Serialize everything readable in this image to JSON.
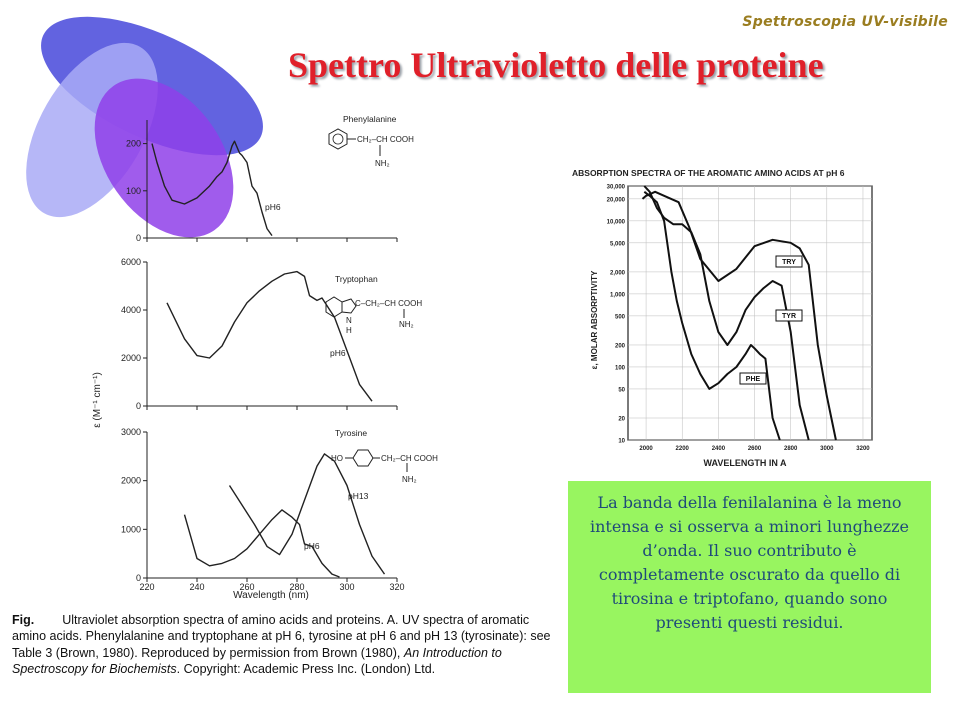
{
  "header": {
    "series_title": "Spettroscopia UV-visibile",
    "slide_title": "Spettro Ultravioletto delle proteine"
  },
  "colors": {
    "title_red": "#e0202a",
    "series_gold": "#9a7d20",
    "note_bg": "#98f560",
    "note_text": "#1f4a7a",
    "ellipse_blue": "#5556dd",
    "ellipse_light": "#a9aaf6",
    "ellipse_violet": "#8f3fe9"
  },
  "left_figure": {
    "ylabel": "ε (M⁻¹ cm⁻¹)",
    "xlabel": "Wavelength (nm)",
    "x_ticks": [
      "220",
      "240",
      "260",
      "280",
      "300",
      "320"
    ],
    "panels": [
      {
        "compound": "Phenylalanine",
        "y_ticks": [
          "0",
          "100",
          "200"
        ],
        "curve_labels": [
          "pH6"
        ],
        "structure": {
          "chain": "CH₂–CH COOH",
          "amine": "NH₂"
        }
      },
      {
        "compound": "Tryptophan",
        "y_ticks": [
          "0",
          "2000",
          "4000",
          "6000"
        ],
        "curve_labels": [
          "pH6"
        ],
        "structure": {
          "chain": "C–CH₂–CH COOH",
          "amine": "NH₂",
          "ring_n": "N",
          "ring_h": "H"
        }
      },
      {
        "compound": "Tyrosine",
        "y_ticks": [
          "0",
          "1000",
          "2000",
          "3000"
        ],
        "curve_labels": [
          "pH13",
          "pH6"
        ],
        "structure": {
          "hydroxyl": "HO",
          "chain": "CH₂–CH COOH",
          "amine": "NH₂"
        }
      }
    ]
  },
  "right_figure": {
    "title": "ABSORPTION SPECTRA OF THE AROMATIC AMINO ACIDS AT pH 6",
    "ylabel": "ε, MOLAR ABSORPTIVITY",
    "xlabel": "WAVELENGTH IN A",
    "x_ticks": [
      "2000",
      "2200",
      "2400",
      "2600",
      "2800",
      "3000",
      "3200"
    ],
    "y_ticks": [
      "10",
      "20",
      "50",
      "100",
      "200",
      "500",
      "1,000",
      "2,000",
      "5,000",
      "10,000",
      "20,000",
      "30,000"
    ],
    "series_labels": [
      "TRY",
      "TYR",
      "PHE"
    ]
  },
  "caption": {
    "lead": "Fig.",
    "line1": "Ultraviolet absorption spectra of amino acids and proteins. A. UV spectra of aromatic amino acids. Phenylalanine and tryptophane at pH 6, tyrosine at pH 6 and pH 13 (tyrosinate): see Table 3 (Brown, 1980). Reproduced by permission from Brown (1980), ",
    "book": "An Introduction to Spectroscopy for Biochemists",
    "line2": ". Copyright: Academic Press Inc. (London) Ltd."
  },
  "note": {
    "text": "La banda della fenilalanina è la meno intensa e si osserva a minori lunghezze d’onda. Il suo contributo è completamente oscurato da quello di tirosina e triptofano, quando sono presenti questi residui."
  },
  "chart_data": [
    {
      "type": "line",
      "title": "Phenylalanine",
      "xlabel": "Wavelength (nm)",
      "ylabel": "ε (M⁻¹ cm⁻¹)",
      "xlim": [
        220,
        320
      ],
      "ylim": [
        0,
        250
      ],
      "series": [
        {
          "name": "pH6",
          "x": [
            222,
            224,
            227,
            230,
            235,
            240,
            245,
            248,
            250,
            252,
            254,
            255,
            257,
            258,
            260,
            262,
            264,
            266,
            268,
            270
          ],
          "y": [
            200,
            160,
            110,
            80,
            72,
            85,
            110,
            130,
            140,
            160,
            195,
            205,
            180,
            175,
            160,
            110,
            95,
            55,
            20,
            5
          ]
        }
      ]
    },
    {
      "type": "line",
      "title": "Tryptophan",
      "xlabel": "Wavelength (nm)",
      "ylabel": "ε (M⁻¹ cm⁻¹)",
      "xlim": [
        220,
        320
      ],
      "ylim": [
        0,
        6000
      ],
      "series": [
        {
          "name": "pH6",
          "x": [
            228,
            235,
            240,
            245,
            250,
            255,
            260,
            265,
            270,
            275,
            280,
            283,
            285,
            288,
            290,
            295,
            300,
            305,
            310
          ],
          "y": [
            4300,
            2800,
            2100,
            2000,
            2500,
            3500,
            4300,
            4800,
            5200,
            5500,
            5600,
            5400,
            4600,
            4400,
            4500,
            3700,
            2300,
            900,
            200
          ]
        }
      ]
    },
    {
      "type": "line",
      "title": "Tyrosine",
      "xlabel": "Wavelength (nm)",
      "ylabel": "ε (M⁻¹ cm⁻¹)",
      "xlim": [
        220,
        320
      ],
      "ylim": [
        0,
        3000
      ],
      "series": [
        {
          "name": "pH13",
          "x": [
            253,
            258,
            263,
            268,
            273,
            278,
            283,
            288,
            291,
            295,
            300,
            305,
            310,
            315
          ],
          "y": [
            1900,
            1500,
            1100,
            650,
            480,
            900,
            1600,
            2300,
            2550,
            2400,
            1900,
            1100,
            450,
            80
          ]
        },
        {
          "name": "pH6",
          "x": [
            235,
            240,
            245,
            250,
            255,
            260,
            265,
            270,
            274,
            278,
            281,
            283,
            286,
            290,
            294,
            297
          ],
          "y": [
            1300,
            400,
            250,
            300,
            400,
            600,
            900,
            1200,
            1400,
            1250,
            1100,
            700,
            650,
            300,
            80,
            20
          ]
        }
      ]
    },
    {
      "type": "line",
      "title": "ABSORPTION SPECTRA OF THE AROMATIC AMINO ACIDS AT pH 6",
      "xlabel": "WAVELENGTH IN A",
      "ylabel": "ε, MOLAR ABSORPTIVITY",
      "yscale": "log",
      "xlim": [
        1900,
        3250
      ],
      "ylim": [
        10,
        30000
      ],
      "series": [
        {
          "name": "TRY",
          "x": [
            1980,
            2000,
            2050,
            2100,
            2180,
            2240,
            2300,
            2400,
            2500,
            2600,
            2700,
            2800,
            2850,
            2900,
            2950,
            3000,
            3050
          ],
          "y": [
            20000,
            22000,
            25000,
            22000,
            18000,
            8000,
            3000,
            1500,
            2200,
            4500,
            5500,
            5000,
            4200,
            2500,
            200,
            40,
            10
          ]
        },
        {
          "name": "TYR",
          "x": [
            1990,
            2020,
            2060,
            2100,
            2150,
            2200,
            2250,
            2300,
            2350,
            2400,
            2450,
            2500,
            2550,
            2600,
            2650,
            2700,
            2750,
            2800,
            2850,
            2900
          ],
          "y": [
            30000,
            25000,
            15000,
            11000,
            9000,
            9000,
            7000,
            3500,
            800,
            300,
            200,
            300,
            600,
            900,
            1200,
            1500,
            1300,
            300,
            30,
            10
          ]
        },
        {
          "name": "PHE",
          "x": [
            1990,
            2020,
            2060,
            2100,
            2140,
            2170,
            2200,
            2250,
            2300,
            2350,
            2400,
            2450,
            2500,
            2550,
            2580,
            2600,
            2630,
            2660,
            2700,
            2740
          ],
          "y": [
            25000,
            22000,
            18000,
            10000,
            2000,
            800,
            400,
            150,
            80,
            50,
            60,
            80,
            100,
            150,
            200,
            180,
            150,
            130,
            20,
            10
          ]
        }
      ]
    }
  ]
}
